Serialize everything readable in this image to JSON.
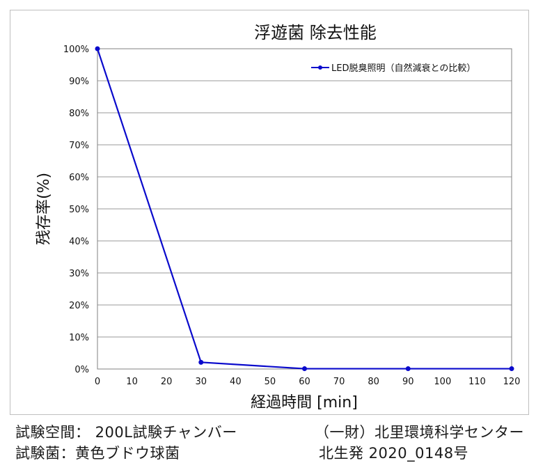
{
  "chart_data": {
    "type": "line",
    "title": "浮遊菌 除去性能",
    "xlabel": "経過時間 [min]",
    "ylabel": "残存率(%)",
    "xlim": [
      0,
      120
    ],
    "ylim": [
      0,
      100
    ],
    "x_ticks": [
      0,
      10,
      20,
      30,
      40,
      50,
      60,
      70,
      80,
      90,
      100,
      110,
      120
    ],
    "y_ticks": [
      0,
      10,
      20,
      30,
      40,
      50,
      60,
      70,
      80,
      90,
      100
    ],
    "y_tick_labels": [
      "0%",
      "10%",
      "20%",
      "30%",
      "40%",
      "50%",
      "60%",
      "70%",
      "80%",
      "90%",
      "100%"
    ],
    "grid": "horizontal",
    "legend_position": "top-right",
    "series": [
      {
        "name": "LED脱臭照明（自然減衰との比較）",
        "color": "#0a0acc",
        "x": [
          0,
          30,
          60,
          90,
          120
        ],
        "y": [
          100,
          2.1,
          0.1,
          0.1,
          0.1
        ]
      }
    ]
  },
  "footer": {
    "test_space": "試験空間： 200L試験チャンバー",
    "test_bacteria": "試験菌：黄色ブドウ球菌",
    "organization": "（一財）北里環境科学センター",
    "report_number": "北生発 2020_0148号"
  }
}
